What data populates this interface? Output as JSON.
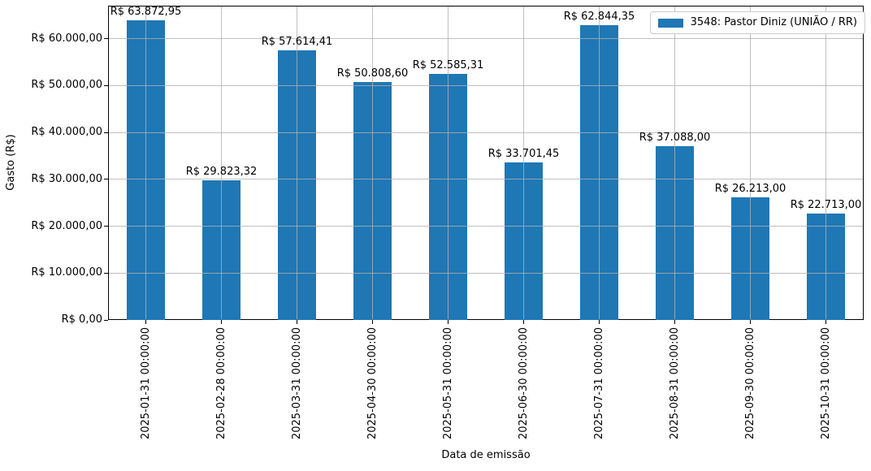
{
  "chart_data": {
    "type": "bar",
    "title": "",
    "xlabel": "Data de emissão",
    "ylabel": "Gasto (R$)",
    "categories": [
      "2025-01-31 00:00:00",
      "2025-02-28 00:00:00",
      "2025-03-31 00:00:00",
      "2025-04-30 00:00:00",
      "2025-05-31 00:00:00",
      "2025-06-30 00:00:00",
      "2025-07-31 00:00:00",
      "2025-08-31 00:00:00",
      "2025-09-30 00:00:00",
      "2025-10-31 00:00:00"
    ],
    "values": [
      63872.95,
      29823.32,
      57614.41,
      50808.6,
      52585.31,
      33701.45,
      62844.35,
      37088.0,
      26213.0,
      22713.0
    ],
    "value_labels": [
      "R$ 63.872,95",
      "R$ 29.823,32",
      "R$ 57.614,41",
      "R$ 50.808,60",
      "R$ 52.585,31",
      "R$ 33.701,45",
      "R$ 62.844,35",
      "R$ 37.088,00",
      "R$ 26.213,00",
      "R$ 22.713,00"
    ],
    "ytick_values": [
      0,
      10000,
      20000,
      30000,
      40000,
      50000,
      60000
    ],
    "ytick_labels": [
      "R$ 0,00",
      "R$ 10.000,00",
      "R$ 20.000,00",
      "R$ 30.000,00",
      "R$ 40.000,00",
      "R$ 50.000,00",
      "R$ 60.000,00"
    ],
    "ylim": [
      0,
      67067
    ],
    "grid": true,
    "grid_over_bars": true,
    "legend": {
      "position": "upper right",
      "entries": [
        {
          "label": "3548: Pastor Diniz (UNIÃO / RR)",
          "color": "#1f77b4"
        }
      ]
    },
    "colors": {
      "bar": "#1f77b4",
      "grid": "#b0b0b0",
      "spine": "#000000",
      "text": "#000000",
      "legend_border": "#cccccc",
      "background": "#ffffff"
    }
  }
}
